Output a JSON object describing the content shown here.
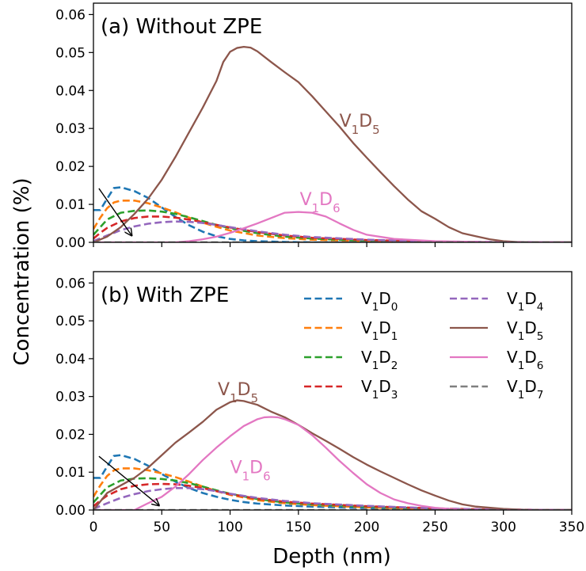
{
  "chart_data": {
    "type": "line",
    "xlabel": "Depth (nm)",
    "ylabel": "Concentration (%)",
    "xlim": [
      0,
      350
    ],
    "ylim": [
      0,
      0.063
    ],
    "xticks": [
      "0",
      "50",
      "100",
      "150",
      "200",
      "250",
      "300",
      "350"
    ],
    "yticks": [
      "0.00",
      "0.01",
      "0.02",
      "0.03",
      "0.04",
      "0.05",
      "0.06"
    ],
    "grid": false,
    "legend_position": "upper-right of panel (b), two columns",
    "legend": [
      {
        "label_main": "V",
        "sub1": "1",
        "label_mid": "D",
        "sub2": "0",
        "series": "V1D0"
      },
      {
        "label_main": "V",
        "sub1": "1",
        "label_mid": "D",
        "sub2": "1",
        "series": "V1D1"
      },
      {
        "label_main": "V",
        "sub1": "1",
        "label_mid": "D",
        "sub2": "2",
        "series": "V1D2"
      },
      {
        "label_main": "V",
        "sub1": "1",
        "label_mid": "D",
        "sub2": "3",
        "series": "V1D3"
      },
      {
        "label_main": "V",
        "sub1": "1",
        "label_mid": "D",
        "sub2": "4",
        "series": "V1D4"
      },
      {
        "label_main": "V",
        "sub1": "1",
        "label_mid": "D",
        "sub2": "5",
        "series": "V1D5"
      },
      {
        "label_main": "V",
        "sub1": "1",
        "label_mid": "D",
        "sub2": "6",
        "series": "V1D6"
      },
      {
        "label_main": "V",
        "sub1": "1",
        "label_mid": "D",
        "sub2": "7",
        "series": "V1D7"
      }
    ],
    "series_style": {
      "V1D0": {
        "color": "#1f77b4",
        "dash": true
      },
      "V1D1": {
        "color": "#ff7f0e",
        "dash": true
      },
      "V1D2": {
        "color": "#2ca02c",
        "dash": true
      },
      "V1D3": {
        "color": "#d62728",
        "dash": true
      },
      "V1D4": {
        "color": "#9467bd",
        "dash": true
      },
      "V1D5": {
        "color": "#8c564b",
        "dash": false
      },
      "V1D6": {
        "color": "#e377c2",
        "dash": false
      },
      "V1D7": {
        "color": "#7f7f7f",
        "dash": true
      }
    },
    "panels": [
      {
        "title": "(a) Without ZPE",
        "annotations": [
          {
            "main": "V",
            "sub1": "1",
            "mid": "D",
            "sub2": "5",
            "color": "#8c564b",
            "x": 180,
            "y": 0.0305
          },
          {
            "main": "V",
            "sub1": "1",
            "mid": "D",
            "sub2": "6",
            "color": "#e377c2",
            "x": 151,
            "y": 0.0098
          }
        ],
        "arrow": {
          "from": [
            4,
            0.0142
          ],
          "to": [
            28,
            0.0018
          ]
        },
        "series": [
          {
            "name": "V1D0",
            "x": [
              0,
              5,
              10,
              15,
              20,
              30,
              40,
              50,
              60,
              70,
              80,
              90,
              100,
              110,
              120,
              140,
              160,
              200,
              250,
              300,
              350
            ],
            "y": [
              0.0085,
              0.0085,
              0.0115,
              0.0143,
              0.0145,
              0.0135,
              0.0117,
              0.0092,
              0.0067,
              0.0045,
              0.0028,
              0.0016,
              0.0009,
              0.0005,
              0.0003,
              0.0001,
              0.0,
              0.0,
              0.0,
              0.0,
              0.0
            ]
          },
          {
            "name": "V1D1",
            "x": [
              0,
              5,
              10,
              15,
              20,
              30,
              40,
              50,
              60,
              70,
              80,
              90,
              100,
              120,
              140,
              160,
              200,
              250,
              300,
              350
            ],
            "y": [
              0.0035,
              0.0065,
              0.009,
              0.0105,
              0.011,
              0.011,
              0.0103,
              0.0092,
              0.0079,
              0.0065,
              0.0052,
              0.0041,
              0.0031,
              0.0018,
              0.0011,
              0.0007,
              0.0003,
              0.0001,
              0.0,
              0.0
            ]
          },
          {
            "name": "V1D2",
            "x": [
              0,
              5,
              10,
              20,
              30,
              40,
              50,
              60,
              70,
              80,
              90,
              100,
              120,
              140,
              160,
              200,
              250,
              300,
              350
            ],
            "y": [
              0.002,
              0.004,
              0.006,
              0.0078,
              0.0083,
              0.0084,
              0.0081,
              0.0075,
              0.0066,
              0.0056,
              0.0046,
              0.0037,
              0.0024,
              0.0015,
              0.001,
              0.0004,
              0.0001,
              0.0,
              0.0
            ]
          },
          {
            "name": "V1D3",
            "x": [
              0,
              5,
              10,
              20,
              30,
              40,
              50,
              60,
              70,
              80,
              90,
              100,
              120,
              140,
              160,
              200,
              250,
              300,
              350
            ],
            "y": [
              0.001,
              0.0025,
              0.0038,
              0.0055,
              0.0064,
              0.0068,
              0.0068,
              0.0065,
              0.006,
              0.0053,
              0.0046,
              0.0039,
              0.0027,
              0.0018,
              0.0012,
              0.0006,
              0.0002,
              0.0,
              0.0
            ]
          },
          {
            "name": "V1D4",
            "x": [
              0,
              10,
              20,
              30,
              40,
              50,
              60,
              70,
              80,
              90,
              100,
              120,
              140,
              160,
              200,
              250,
              300,
              350
            ],
            "y": [
              0.0003,
              0.0018,
              0.0032,
              0.0042,
              0.0049,
              0.0053,
              0.0055,
              0.0054,
              0.0051,
              0.0046,
              0.004,
              0.0029,
              0.002,
              0.0014,
              0.0007,
              0.0002,
              0.0001,
              0.0
            ]
          },
          {
            "name": "V1D5",
            "x": [
              0,
              10,
              20,
              30,
              40,
              50,
              60,
              70,
              80,
              90,
              95,
              100,
              105,
              110,
              115,
              120,
              130,
              140,
              150,
              160,
              170,
              180,
              190,
              200,
              210,
              220,
              230,
              240,
              250,
              260,
              270,
              280,
              290,
              300,
              310,
              320,
              350
            ],
            "y": [
              0.0,
              0.0015,
              0.004,
              0.0075,
              0.0115,
              0.0165,
              0.0225,
              0.029,
              0.0355,
              0.0425,
              0.0475,
              0.0502,
              0.0512,
              0.0515,
              0.0513,
              0.0503,
              0.0475,
              0.0448,
              0.0422,
              0.0385,
              0.0345,
              0.0305,
              0.0262,
              0.0223,
              0.0185,
              0.0148,
              0.0113,
              0.0082,
              0.0062,
              0.004,
              0.0024,
              0.0016,
              0.0008,
              0.0003,
              0.0001,
              0.0,
              0.0
            ]
          },
          {
            "name": "V1D6",
            "x": [
              0,
              60,
              70,
              80,
              90,
              100,
              110,
              120,
              130,
              140,
              150,
              160,
              170,
              180,
              190,
              200,
              220,
              250,
              300,
              350
            ],
            "y": [
              0.0,
              0.0,
              0.0003,
              0.0008,
              0.0015,
              0.0025,
              0.0037,
              0.005,
              0.0064,
              0.0078,
              0.008,
              0.0078,
              0.0068,
              0.005,
              0.0033,
              0.002,
              0.0009,
              0.0003,
              0.0,
              0.0
            ]
          },
          {
            "name": "V1D7",
            "x": [
              0,
              350
            ],
            "y": [
              0.0,
              0.0
            ]
          }
        ]
      },
      {
        "title": "(b) With ZPE",
        "annotations": [
          {
            "main": "V",
            "sub1": "1",
            "mid": "D",
            "sub2": "5",
            "color": "#8c564b",
            "x": 91,
            "y": 0.0303
          },
          {
            "main": "V",
            "sub1": "1",
            "mid": "D",
            "sub2": "6",
            "color": "#e377c2",
            "x": 100,
            "y": 0.0097
          }
        ],
        "arrow": {
          "from": [
            4,
            0.0142
          ],
          "to": [
            48,
            0.0012
          ]
        },
        "series": [
          {
            "name": "V1D0",
            "x": [
              0,
              5,
              10,
              15,
              20,
              30,
              40,
              50,
              60,
              70,
              80,
              90,
              100,
              110,
              120,
              140,
              160,
              200,
              250,
              300,
              350
            ],
            "y": [
              0.0085,
              0.0085,
              0.0115,
              0.0143,
              0.0145,
              0.0135,
              0.0117,
              0.0095,
              0.0075,
              0.0058,
              0.0045,
              0.0035,
              0.0027,
              0.0021,
              0.0017,
              0.0012,
              0.0009,
              0.0005,
              0.0002,
              0.0,
              0.0
            ]
          },
          {
            "name": "V1D1",
            "x": [
              0,
              5,
              10,
              15,
              20,
              30,
              40,
              50,
              60,
              70,
              80,
              90,
              100,
              120,
              140,
              160,
              200,
              250,
              300,
              350
            ],
            "y": [
              0.0035,
              0.0065,
              0.009,
              0.0105,
              0.011,
              0.011,
              0.0105,
              0.0097,
              0.0087,
              0.0075,
              0.0062,
              0.005,
              0.004,
              0.0026,
              0.0018,
              0.0013,
              0.0007,
              0.0002,
              0.0,
              0.0
            ]
          },
          {
            "name": "V1D2",
            "x": [
              0,
              5,
              10,
              20,
              30,
              40,
              50,
              60,
              70,
              80,
              90,
              100,
              120,
              140,
              160,
              200,
              250,
              300,
              350
            ],
            "y": [
              0.002,
              0.004,
              0.006,
              0.0078,
              0.0083,
              0.0084,
              0.0082,
              0.0078,
              0.0071,
              0.0062,
              0.0052,
              0.0043,
              0.0029,
              0.002,
              0.0015,
              0.0009,
              0.0003,
              0.0,
              0.0
            ]
          },
          {
            "name": "V1D3",
            "x": [
              0,
              5,
              10,
              20,
              30,
              40,
              50,
              60,
              70,
              80,
              90,
              100,
              120,
              140,
              160,
              200,
              250,
              300,
              350
            ],
            "y": [
              0.001,
              0.0025,
              0.0038,
              0.0055,
              0.0064,
              0.0068,
              0.0069,
              0.0068,
              0.0064,
              0.0058,
              0.005,
              0.0042,
              0.003,
              0.0022,
              0.0017,
              0.001,
              0.0004,
              0.0001,
              0.0
            ]
          },
          {
            "name": "V1D4",
            "x": [
              0,
              10,
              20,
              30,
              40,
              50,
              60,
              70,
              80,
              90,
              100,
              120,
              140,
              160,
              200,
              250,
              300,
              350
            ],
            "y": [
              0.0003,
              0.0018,
              0.0032,
              0.0042,
              0.005,
              0.0055,
              0.0058,
              0.0058,
              0.0055,
              0.005,
              0.0043,
              0.0032,
              0.0024,
              0.0018,
              0.0011,
              0.0004,
              0.0001,
              0.0
            ]
          },
          {
            "name": "V1D5",
            "x": [
              0,
              10,
              20,
              30,
              40,
              50,
              60,
              70,
              80,
              90,
              100,
              105,
              110,
              120,
              130,
              140,
              150,
              160,
              170,
              180,
              190,
              200,
              210,
              220,
              230,
              240,
              250,
              260,
              270,
              280,
              300,
              320,
              350
            ],
            "y": [
              0.0,
              0.0045,
              0.0065,
              0.0085,
              0.0112,
              0.0145,
              0.0178,
              0.0205,
              0.0233,
              0.0265,
              0.0285,
              0.029,
              0.0288,
              0.0278,
              0.026,
              0.0245,
              0.0225,
              0.0203,
              0.0183,
              0.0162,
              0.014,
              0.012,
              0.0102,
              0.0085,
              0.0068,
              0.0052,
              0.0038,
              0.0025,
              0.0015,
              0.0009,
              0.0003,
              0.0,
              0.0
            ]
          },
          {
            "name": "V1D6",
            "x": [
              0,
              30,
              40,
              50,
              60,
              70,
              80,
              90,
              100,
              110,
              120,
              125,
              130,
              135,
              140,
              150,
              160,
              170,
              180,
              190,
              200,
              210,
              220,
              230,
              240,
              250,
              260,
              270,
              300,
              350
            ],
            "y": [
              0.0,
              0.0,
              0.0018,
              0.0035,
              0.0062,
              0.0095,
              0.0132,
              0.0165,
              0.0195,
              0.0222,
              0.024,
              0.0245,
              0.0246,
              0.0245,
              0.024,
              0.0225,
              0.0198,
              0.0165,
              0.013,
              0.0098,
              0.0068,
              0.0045,
              0.0028,
              0.0018,
              0.0011,
              0.0006,
              0.0003,
              0.0001,
              0.0,
              0.0
            ]
          },
          {
            "name": "V1D7",
            "x": [
              0,
              350
            ],
            "y": [
              0.0,
              0.0
            ]
          }
        ]
      }
    ]
  }
}
